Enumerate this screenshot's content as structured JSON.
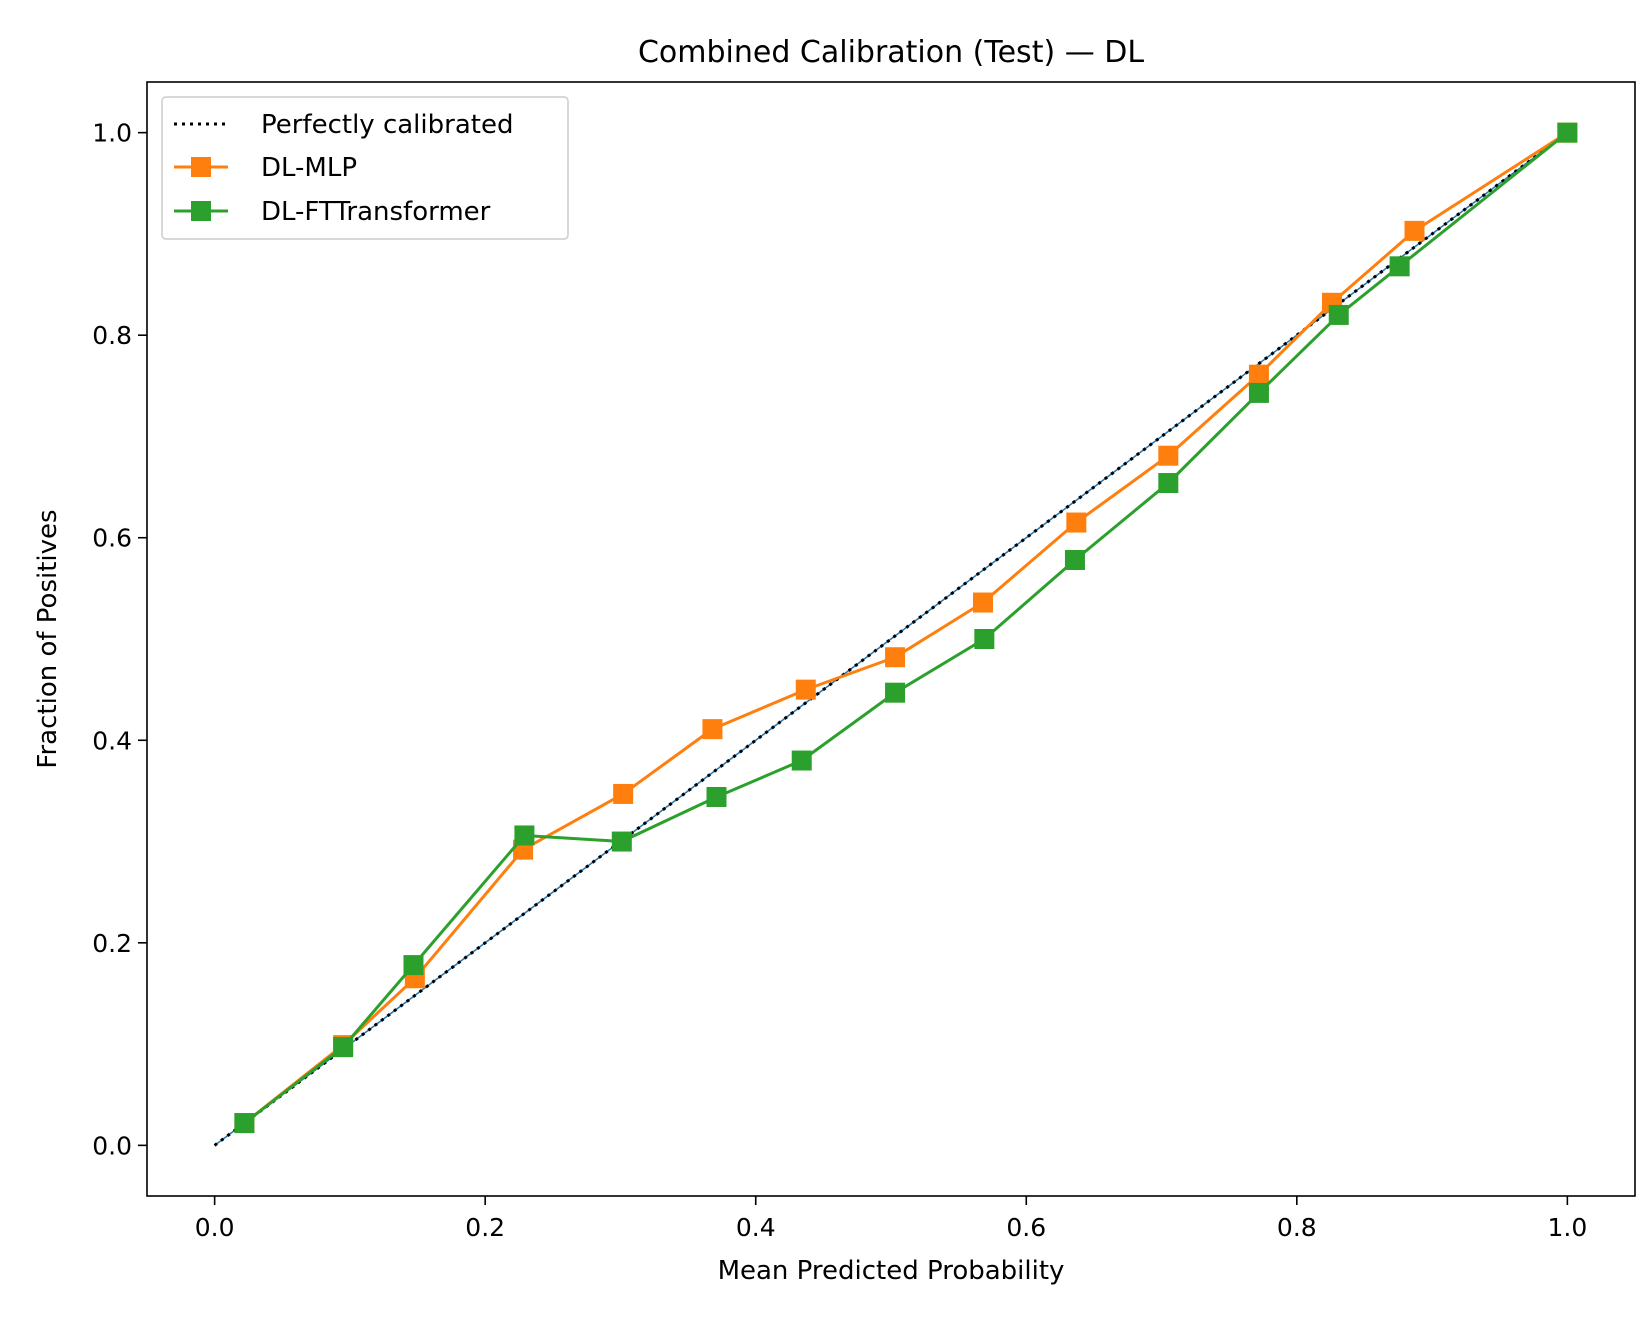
{
  "chart_data": {
    "type": "line",
    "title": "Combined Calibration (Test) — DL",
    "xlabel": "Mean Predicted Probability",
    "ylabel": "Fraction of Positives",
    "xlim": [
      -0.05,
      1.05
    ],
    "ylim": [
      -0.05,
      1.05
    ],
    "xticks": [
      "0.0",
      "0.2",
      "0.4",
      "0.6",
      "0.8",
      "1.0"
    ],
    "yticks": [
      "0.0",
      "0.2",
      "0.4",
      "0.6",
      "0.8",
      "1.0"
    ],
    "grid": false,
    "legend_position": "top-left",
    "series": [
      {
        "name": "Perfectly calibrated",
        "style": "dotted",
        "color": "#000000",
        "x": [
          0,
          1
        ],
        "y": [
          0,
          1
        ]
      },
      {
        "name": "DL-MLP",
        "style": "solid",
        "marker": "square",
        "color": "#ff7f0e",
        "x": [
          0.022,
          0.095,
          0.148,
          0.228,
          0.302,
          0.368,
          0.437,
          0.503,
          0.568,
          0.637,
          0.705,
          0.772,
          0.826,
          0.887,
          1.0
        ],
        "y": [
          0.022,
          0.099,
          0.165,
          0.292,
          0.347,
          0.411,
          0.45,
          0.482,
          0.536,
          0.615,
          0.681,
          0.761,
          0.832,
          0.903,
          1.0
        ]
      },
      {
        "name": "DL-FTTransformer",
        "style": "solid",
        "marker": "square",
        "color": "#2ca02c",
        "x": [
          0.022,
          0.095,
          0.147,
          0.229,
          0.301,
          0.371,
          0.434,
          0.503,
          0.569,
          0.636,
          0.705,
          0.772,
          0.831,
          0.876,
          1.0
        ],
        "y": [
          0.022,
          0.097,
          0.178,
          0.306,
          0.3,
          0.344,
          0.38,
          0.447,
          0.5,
          0.578,
          0.654,
          0.743,
          0.82,
          0.868,
          1.0
        ]
      }
    ]
  }
}
